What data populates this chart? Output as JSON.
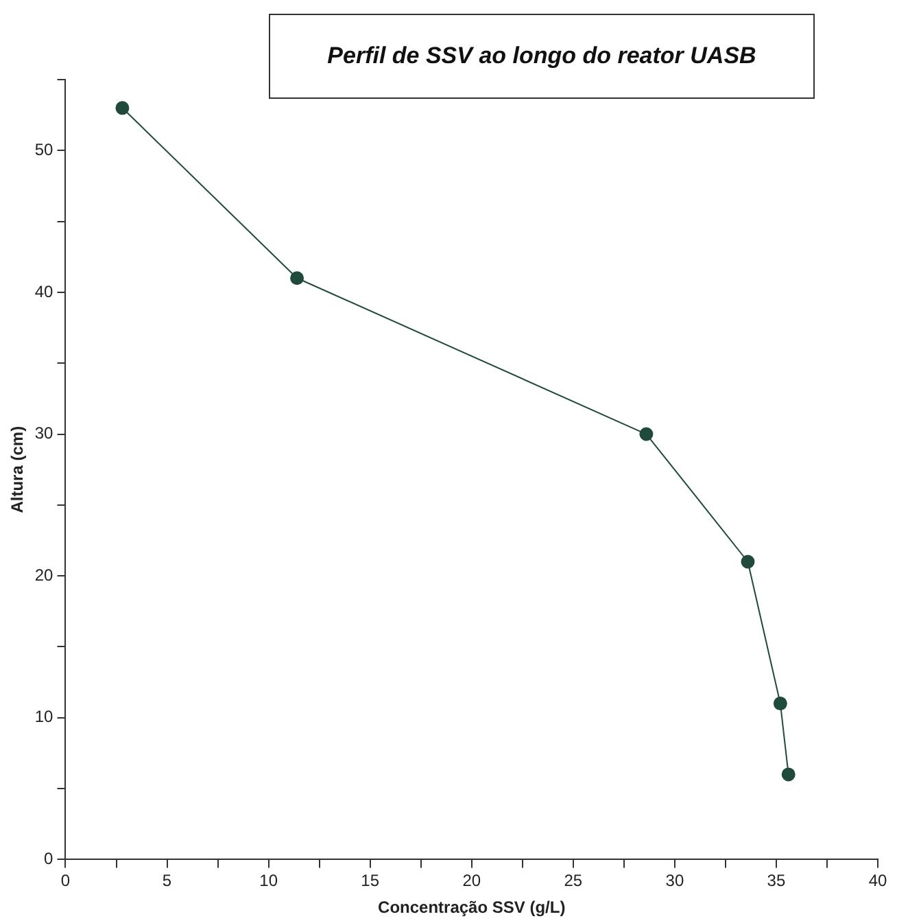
{
  "chart_data": {
    "type": "line",
    "title": "Perfil de SSV ao longo do reator UASB",
    "xlabel": "Concentração SSV (g/L)",
    "ylabel": "Altura (cm)",
    "x": [
      2.8,
      11.4,
      28.6,
      33.6,
      35.2,
      35.6
    ],
    "series": [
      {
        "color": "#1f4a3c",
        "values": [
          53,
          41,
          30,
          21,
          11,
          6
        ]
      }
    ],
    "xlim": [
      0,
      40
    ],
    "ylim": [
      0,
      55
    ],
    "xticks": [
      0,
      {
        "value": 2.5,
        "label": null
      },
      5,
      {
        "value": 7.5,
        "label": null
      },
      10,
      {
        "value": 12.5,
        "label": null
      },
      15,
      {
        "value": 17.5,
        "label": null
      },
      20,
      {
        "value": 22.5,
        "label": null
      },
      25,
      {
        "value": 27.5,
        "label": null
      },
      30,
      {
        "value": 32.5,
        "label": null
      },
      35,
      {
        "value": 37.5,
        "label": null
      },
      40
    ],
    "yticks": [
      0,
      {
        "value": 5,
        "label": null
      },
      10,
      {
        "value": 15,
        "label": null
      },
      20,
      {
        "value": 25,
        "label": null
      },
      30,
      {
        "value": 35,
        "label": null
      },
      40,
      {
        "value": 45,
        "label": null
      },
      50,
      {
        "value": 55,
        "label": null
      }
    ],
    "grid": false,
    "legend": false,
    "marker": "circle",
    "line_style": "solid"
  }
}
